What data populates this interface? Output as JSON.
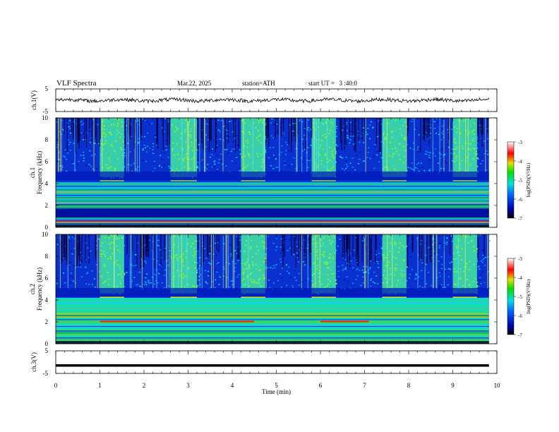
{
  "header": {
    "title": "VLF Spectra",
    "date": "Mar.22, 2025",
    "station": "station=ATH",
    "start_ut": "start UT =   3 :40:0"
  },
  "chart_data": [
    {
      "id": "ch1-voltage",
      "type": "line",
      "ylabel": "ch.1(V)",
      "yticks": [
        "5",
        "-5"
      ],
      "ylim": [
        -5,
        5
      ],
      "xlim": [
        0,
        10
      ],
      "description_values": {
        "baseline_v": 0,
        "noise_amplitude_v": 0.8
      },
      "series_color": "#000000"
    },
    {
      "id": "ch1-spectrogram",
      "type": "heatmap",
      "ylabel": "ch.1",
      "ylabel2": "Frequency  (kHz)",
      "yticks": [
        "10",
        "8",
        "6",
        "4",
        "2",
        "0"
      ],
      "ylim": [
        0,
        10
      ],
      "xlim": [
        0,
        10
      ],
      "bright_intervals_min": [
        [
          1.0,
          1.55
        ],
        [
          2.6,
          3.2
        ],
        [
          4.2,
          4.75
        ],
        [
          5.8,
          6.35
        ],
        [
          7.4,
          7.95
        ],
        [
          9.0,
          9.55
        ]
      ],
      "colorbar": {
        "label": "log(PSD)(V²/Hz)",
        "ticks": [
          "-3",
          "-4",
          "-5",
          "-6",
          "-7"
        ],
        "range": [
          -7,
          -3
        ]
      }
    },
    {
      "id": "ch2-spectrogram",
      "type": "heatmap",
      "ylabel": "ch.2",
      "ylabel2": "Frequency  (kHz)",
      "yticks": [
        "10",
        "8",
        "6",
        "4",
        "2",
        "0"
      ],
      "ylim": [
        0,
        10
      ],
      "xlim": [
        0,
        10
      ],
      "bright_intervals_min": [
        [
          1.0,
          1.55
        ],
        [
          2.6,
          3.2
        ],
        [
          4.2,
          4.75
        ],
        [
          5.8,
          6.35
        ],
        [
          7.4,
          7.95
        ],
        [
          9.0,
          9.55
        ]
      ],
      "colorbar": {
        "label": "log(PSD)(V²/Hz)",
        "ticks": [
          "-3",
          "-4",
          "-5",
          "-6",
          "-7"
        ],
        "range": [
          -7,
          -3
        ]
      }
    },
    {
      "id": "ch3-voltage",
      "type": "line",
      "ylabel": "ch.3(V)",
      "yticks": [
        "5",
        "-5"
      ],
      "ylim": [
        -5,
        5
      ],
      "xlim": [
        0,
        10
      ],
      "description_values": {
        "baseline_v": -1.5
      },
      "series_color": "#000000"
    }
  ],
  "xaxis": {
    "label": "Time  (min)",
    "ticks": [
      "0",
      "1",
      "2",
      "3",
      "4",
      "5",
      "6",
      "7",
      "8",
      "9",
      "10"
    ]
  }
}
